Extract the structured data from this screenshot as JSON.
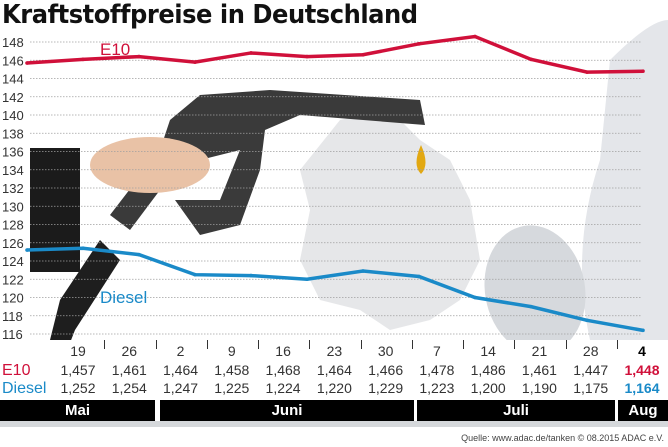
{
  "chart_data": {
    "type": "line",
    "title": "Kraftstoffpreise in Deutschland",
    "ylim": [
      116,
      148
    ],
    "yticks": [
      116,
      118,
      120,
      122,
      124,
      126,
      128,
      130,
      132,
      134,
      136,
      138,
      140,
      142,
      144,
      146,
      148
    ],
    "grid": true,
    "x": [
      "19",
      "26",
      "2",
      "9",
      "16",
      "23",
      "30",
      "7",
      "14",
      "21",
      "28",
      "4"
    ],
    "months": [
      "Mai",
      "Juni",
      "Juli",
      "Aug"
    ],
    "series": [
      {
        "name": "E10",
        "color": "#d0103a",
        "values": [
          145.7,
          146.1,
          146.4,
          145.8,
          146.8,
          146.4,
          146.6,
          147.8,
          148.6,
          146.1,
          144.7,
          144.8
        ],
        "table": [
          "1,457",
          "1,461",
          "1,464",
          "1,458",
          "1,468",
          "1,464",
          "1,466",
          "1,478",
          "1,486",
          "1,461",
          "1,447",
          "1,448"
        ]
      },
      {
        "name": "Diesel",
        "color": "#1a8ac8",
        "values": [
          125.2,
          125.4,
          124.7,
          122.5,
          122.4,
          122.0,
          122.9,
          122.3,
          120.0,
          119.0,
          117.5,
          116.4
        ],
        "table": [
          "1,252",
          "1,254",
          "1,247",
          "1,225",
          "1,224",
          "1,220",
          "1,229",
          "1,223",
          "1,200",
          "1,190",
          "1,175",
          "1,164"
        ]
      }
    ]
  },
  "source": "Quelle: www.adac.de/tanken   © 08.2015  ADAC e.V."
}
